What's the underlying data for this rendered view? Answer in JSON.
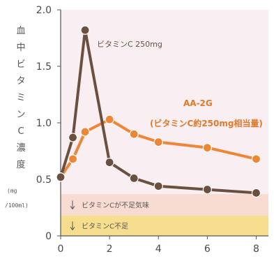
{
  "chart_data": {
    "type": "line",
    "ylabel": "血中ビタミンC濃度",
    "yunit_line1": "(mg",
    "yunit_line2": "/100ml)",
    "ylim": [
      0,
      2.0
    ],
    "xlim": [
      0,
      8.5
    ],
    "xticks": [
      "0",
      "2",
      "4",
      "6",
      "8"
    ],
    "yticks": [
      "0",
      "0.5",
      "1.0",
      "1.5",
      "2.0"
    ],
    "bands": [
      {
        "label": "ビタミンCが不足気味",
        "from": 0.18,
        "to": 0.37,
        "color": "#f8dcd2"
      },
      {
        "label": "ビタミンC不足",
        "from": 0.0,
        "to": 0.18,
        "color": "#f7dd8e"
      }
    ],
    "plot_background": "#f9eef2",
    "series": [
      {
        "name": "ビタミンC 250mg",
        "color": "#6b5040",
        "x": [
          0,
          0.5,
          1.0,
          2.0,
          3.0,
          4.0,
          6.0,
          8.0
        ],
        "y": [
          0.52,
          0.87,
          1.82,
          0.65,
          0.51,
          0.44,
          0.41,
          0.38
        ]
      },
      {
        "name": "AA-2G",
        "name_line2": "(ビタミンC約250mg相当量)",
        "color": "#ee8638",
        "x": [
          0,
          0.5,
          1.0,
          2.0,
          3.0,
          4.0,
          6.0,
          8.0
        ],
        "y": [
          0.52,
          0.68,
          0.92,
          1.03,
          0.9,
          0.83,
          0.78,
          0.68
        ]
      }
    ]
  }
}
